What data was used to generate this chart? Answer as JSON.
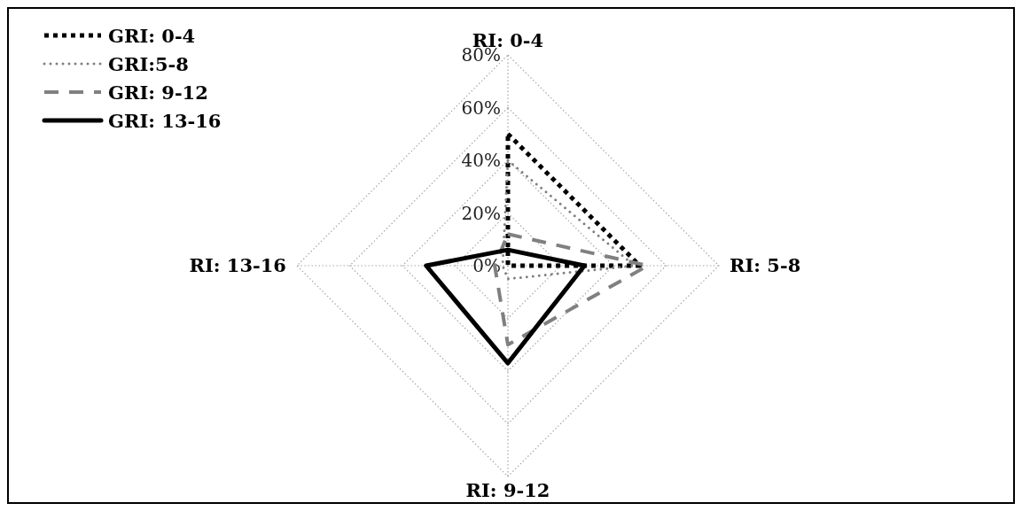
{
  "chart_data": {
    "type": "radar",
    "categories": [
      "RI: 0-4",
      "RI: 5-8",
      "RI: 9-12",
      "RI: 13-16"
    ],
    "ylim": [
      0,
      80
    ],
    "yticks": [
      {
        "value": 0,
        "label": "0%"
      },
      {
        "value": 20,
        "label": "20%"
      },
      {
        "value": 40,
        "label": "40%"
      },
      {
        "value": 60,
        "label": "60%"
      },
      {
        "value": 80,
        "label": "80%"
      }
    ],
    "grid": true,
    "legend": "top left",
    "series": [
      {
        "name": "GRI: 0-4",
        "color": "#000000",
        "line_style": "dotted",
        "values": [
          50,
          50,
          0,
          0
        ]
      },
      {
        "name": "GRI:5-8",
        "color": "#808080",
        "line_style": "dotted",
        "values": [
          40,
          48,
          5,
          2
        ]
      },
      {
        "name": "GRI: 9-12",
        "color": "#808080",
        "line_style": "dashed",
        "values": [
          12,
          53,
          30,
          5
        ]
      },
      {
        "name": "GRI: 13-16",
        "color": "#000000",
        "line_style": "solid",
        "values": [
          6,
          29,
          37,
          31
        ]
      }
    ]
  }
}
